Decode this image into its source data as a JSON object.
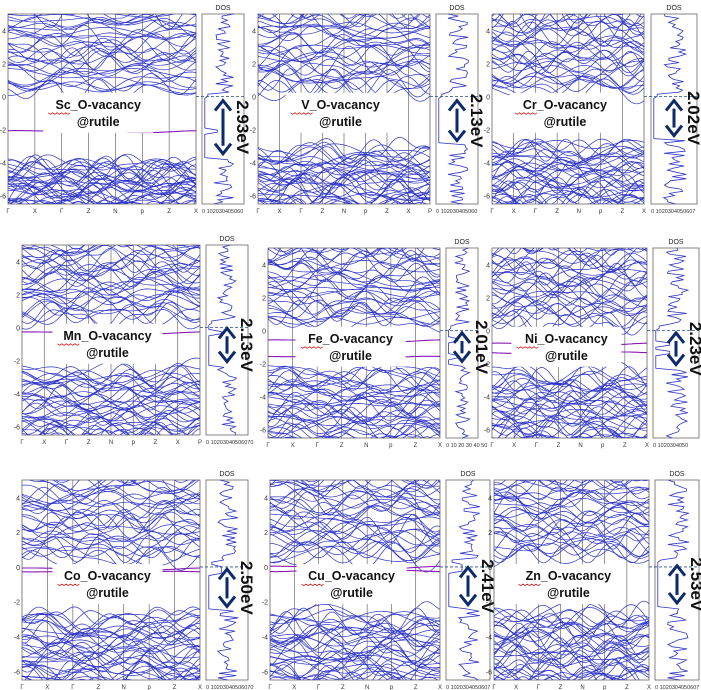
{
  "chart_data": [
    {
      "type": "band-structure",
      "label_line1": "Sc_O-vacancy",
      "label_line2": "@rutile",
      "gap_label": "2.93eV",
      "dos_title": "DOS",
      "dos_ticks": "0 102030405060",
      "y_ticks": [
        "4",
        "2",
        "0",
        "-2",
        "-4",
        "-6"
      ],
      "k_labels": [
        "Γ",
        "X",
        "Γ",
        "Z",
        "N",
        "p",
        "Z",
        "X"
      ],
      "ylim": [
        -6.5,
        5
      ],
      "valence_top": -3.7,
      "conduction_bottom": 0,
      "defect_levels": [
        -2.1
      ]
    },
    {
      "type": "band-structure",
      "label_line1": "V_O-vacancy",
      "label_line2": "@rutile",
      "gap_label": "2.13eV",
      "dos_title": "DOS",
      "dos_ticks": "0 102030405060",
      "y_ticks": [
        "4",
        "2",
        "0",
        "-2",
        "-4",
        "-6"
      ],
      "k_labels": [
        "Γ",
        "X",
        "Γ",
        "Z",
        "N",
        "p",
        "Z",
        "X",
        "P"
      ],
      "ylim": [
        -6.5,
        5
      ],
      "valence_top": -2.9,
      "conduction_bottom": 0,
      "defect_levels": []
    },
    {
      "type": "band-structure",
      "label_line1": "Cr_O-vacancy",
      "label_line2": "@rutile",
      "gap_label": "2.02eV",
      "dos_title": "DOS",
      "dos_ticks": "0 1020304050607",
      "y_ticks": [
        "4",
        "2",
        "0",
        "-2",
        "-4",
        "-6"
      ],
      "k_labels": [
        "Γ",
        "X",
        "Γ",
        "Z",
        "N",
        "p",
        "Z",
        "X"
      ],
      "ylim": [
        -6.5,
        5
      ],
      "valence_top": -2.6,
      "conduction_bottom": 0,
      "defect_levels": []
    },
    {
      "type": "band-structure",
      "label_line1": "Mn_O-vacancy",
      "label_line2": "@rutile",
      "gap_label": "2.13eV",
      "dos_title": "DOS",
      "dos_ticks": "0 10203040506070",
      "y_ticks": [
        "4",
        "2",
        "0",
        "-2",
        "-4",
        "-6"
      ],
      "k_labels": [
        "Γ",
        "X",
        "Γ",
        "Z",
        "N",
        "p",
        "Z",
        "X",
        "P"
      ],
      "ylim": [
        -6.5,
        5
      ],
      "valence_top": -2.3,
      "conduction_bottom": 0.2,
      "defect_levels": [
        -0.3
      ]
    },
    {
      "type": "band-structure",
      "label_line1": "Fe_O-vacancy",
      "label_line2": "@rutile",
      "gap_label": "2.01eV",
      "dos_title": "DOS",
      "dos_ticks": "0 10 20 30 40 50",
      "y_ticks": [
        "4",
        "2",
        "0",
        "-2",
        "-4",
        "-6"
      ],
      "k_labels": [
        "Γ",
        "X",
        "Γ",
        "Z",
        "N",
        "p",
        "Z",
        "X"
      ],
      "ylim": [
        -6.5,
        5
      ],
      "valence_top": -2.1,
      "conduction_bottom": 0.1,
      "defect_levels": [
        -0.6,
        -1.6
      ]
    },
    {
      "type": "band-structure",
      "label_line1": "Ni_O-vacancy",
      "label_line2": "@rutile",
      "gap_label": "2.23eV",
      "dos_title": "DOS",
      "dos_ticks": "0 1020304050",
      "y_ticks": [
        "4",
        "2",
        "0",
        "-2",
        "-4",
        "-6"
      ],
      "k_labels": [
        "Γ",
        "X",
        "Γ",
        "Z",
        "N",
        "p",
        "Z",
        "X"
      ],
      "ylim": [
        -6.5,
        5
      ],
      "valence_top": -2.3,
      "conduction_bottom": 0.1,
      "defect_levels": [
        -0.8,
        -1.3
      ]
    },
    {
      "type": "band-structure",
      "label_line1": "Co_O-vacancy",
      "label_line2": "@rutile",
      "gap_label": "2.50eV",
      "dos_title": "DOS",
      "dos_ticks": "0 10203040506070",
      "y_ticks": [
        "4",
        "2",
        "0",
        "-2",
        "-4",
        "-6"
      ],
      "k_labels": [
        "Γ",
        "X",
        "Γ",
        "Z",
        "N",
        "p",
        "Z",
        "X"
      ],
      "ylim": [
        -6.5,
        5
      ],
      "valence_top": -2.5,
      "conduction_bottom": 0.1,
      "defect_levels": [
        -0.1,
        -0.3
      ]
    },
    {
      "type": "band-structure",
      "label_line1": "Cu_O-vacancy",
      "label_line2": "@rutile",
      "gap_label": "2.41eV",
      "dos_title": "DOS",
      "dos_ticks": "0 1020304050607",
      "y_ticks": [
        "4",
        "2",
        "0",
        "-2",
        "-4",
        "-6"
      ],
      "k_labels": [
        "Γ",
        "X",
        "Γ",
        "Z",
        "N",
        "p",
        "Z",
        "X"
      ],
      "ylim": [
        -6.5,
        5
      ],
      "valence_top": -2.4,
      "conduction_bottom": 0.2,
      "defect_levels": [
        0.0,
        -0.2
      ]
    },
    {
      "type": "band-structure",
      "label_line1": "Zn_O-vacancy",
      "label_line2": "@rutile",
      "gap_label": "2.53eV",
      "dos_title": "DOS",
      "dos_ticks": "0 1020304050607",
      "y_ticks": [
        "4",
        "2",
        "0",
        "-2",
        "-4",
        "-6"
      ],
      "k_labels": [
        "Γ",
        "X",
        "Γ",
        "Z",
        "N",
        "p",
        "Z",
        "X"
      ],
      "ylim": [
        -6.5,
        5
      ],
      "valence_top": -2.3,
      "conduction_bottom": 0.3,
      "defect_levels": []
    }
  ],
  "colors": {
    "band": "#2e34c8",
    "defect": "#8a1ab8",
    "arrow": "#0d2a6b",
    "gap_text": "#111111",
    "dashed": "#2a4b8c",
    "frame": "#666666",
    "squiggle": "#d02020"
  }
}
